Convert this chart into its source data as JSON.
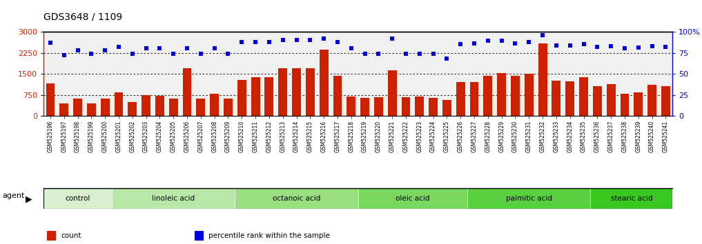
{
  "title": "GDS3648 / 1109",
  "samples": [
    "GSM525196",
    "GSM525197",
    "GSM525198",
    "GSM525199",
    "GSM525200",
    "GSM525201",
    "GSM525202",
    "GSM525203",
    "GSM525204",
    "GSM525205",
    "GSM525206",
    "GSM525207",
    "GSM525208",
    "GSM525209",
    "GSM525210",
    "GSM525211",
    "GSM525212",
    "GSM525213",
    "GSM525214",
    "GSM525215",
    "GSM525216",
    "GSM525217",
    "GSM525218",
    "GSM525219",
    "GSM525220",
    "GSM525221",
    "GSM525222",
    "GSM525223",
    "GSM525224",
    "GSM525225",
    "GSM525226",
    "GSM525227",
    "GSM525228",
    "GSM525229",
    "GSM525230",
    "GSM525231",
    "GSM525232",
    "GSM525233",
    "GSM525234",
    "GSM525235",
    "GSM525236",
    "GSM525237",
    "GSM525238",
    "GSM525239",
    "GSM525240",
    "GSM525241"
  ],
  "counts": [
    1150,
    450,
    620,
    450,
    620,
    830,
    500,
    730,
    720,
    620,
    1690,
    630,
    800,
    620,
    1270,
    1380,
    1380,
    1690,
    1700,
    1700,
    2350,
    1430,
    700,
    650,
    670,
    1620,
    670,
    680,
    640,
    580,
    1200,
    1200,
    1440,
    1520,
    1440,
    1510,
    2580,
    1250,
    1240,
    1380,
    1070,
    1130,
    800,
    830,
    1100,
    1060
  ],
  "percentile": [
    87,
    72,
    78,
    74,
    78,
    82,
    74,
    80,
    80,
    74,
    80,
    74,
    80,
    74,
    88,
    88,
    88,
    90,
    90,
    90,
    92,
    88,
    80,
    74,
    74,
    92,
    74,
    74,
    74,
    68,
    85,
    86,
    89,
    89,
    86,
    88,
    96,
    84,
    84,
    85,
    82,
    83,
    80,
    81,
    83,
    82
  ],
  "groups": [
    {
      "label": "control",
      "start": 0,
      "end": 5
    },
    {
      "label": "linoleic acid",
      "start": 5,
      "end": 14
    },
    {
      "label": "octanoic acid",
      "start": 14,
      "end": 23
    },
    {
      "label": "oleic acid",
      "start": 23,
      "end": 31
    },
    {
      "label": "palmitic acid",
      "start": 31,
      "end": 40
    },
    {
      "label": "stearic acid",
      "start": 40,
      "end": 46
    }
  ],
  "group_colors": [
    "#d8f0d0",
    "#b8e8a8",
    "#98e080",
    "#78d860",
    "#58d040",
    "#38c820"
  ],
  "bar_color": "#cc2200",
  "dot_color": "#0000dd",
  "ylim_left": [
    0,
    3000
  ],
  "ylim_right": [
    0,
    100
  ],
  "yticks_left": [
    0,
    750,
    1500,
    2250,
    3000
  ],
  "yticks_right": [
    0,
    25,
    50,
    75,
    100
  ],
  "grid_values": [
    750,
    1500,
    2250
  ],
  "bg_color": "#f0f0f0",
  "title_fontsize": 10,
  "tick_fontsize": 7,
  "bar_width": 0.65,
  "legend_items": [
    {
      "label": "count",
      "color": "#cc2200"
    },
    {
      "label": "percentile rank within the sample",
      "color": "#0000dd"
    }
  ],
  "agent_label": "agent"
}
